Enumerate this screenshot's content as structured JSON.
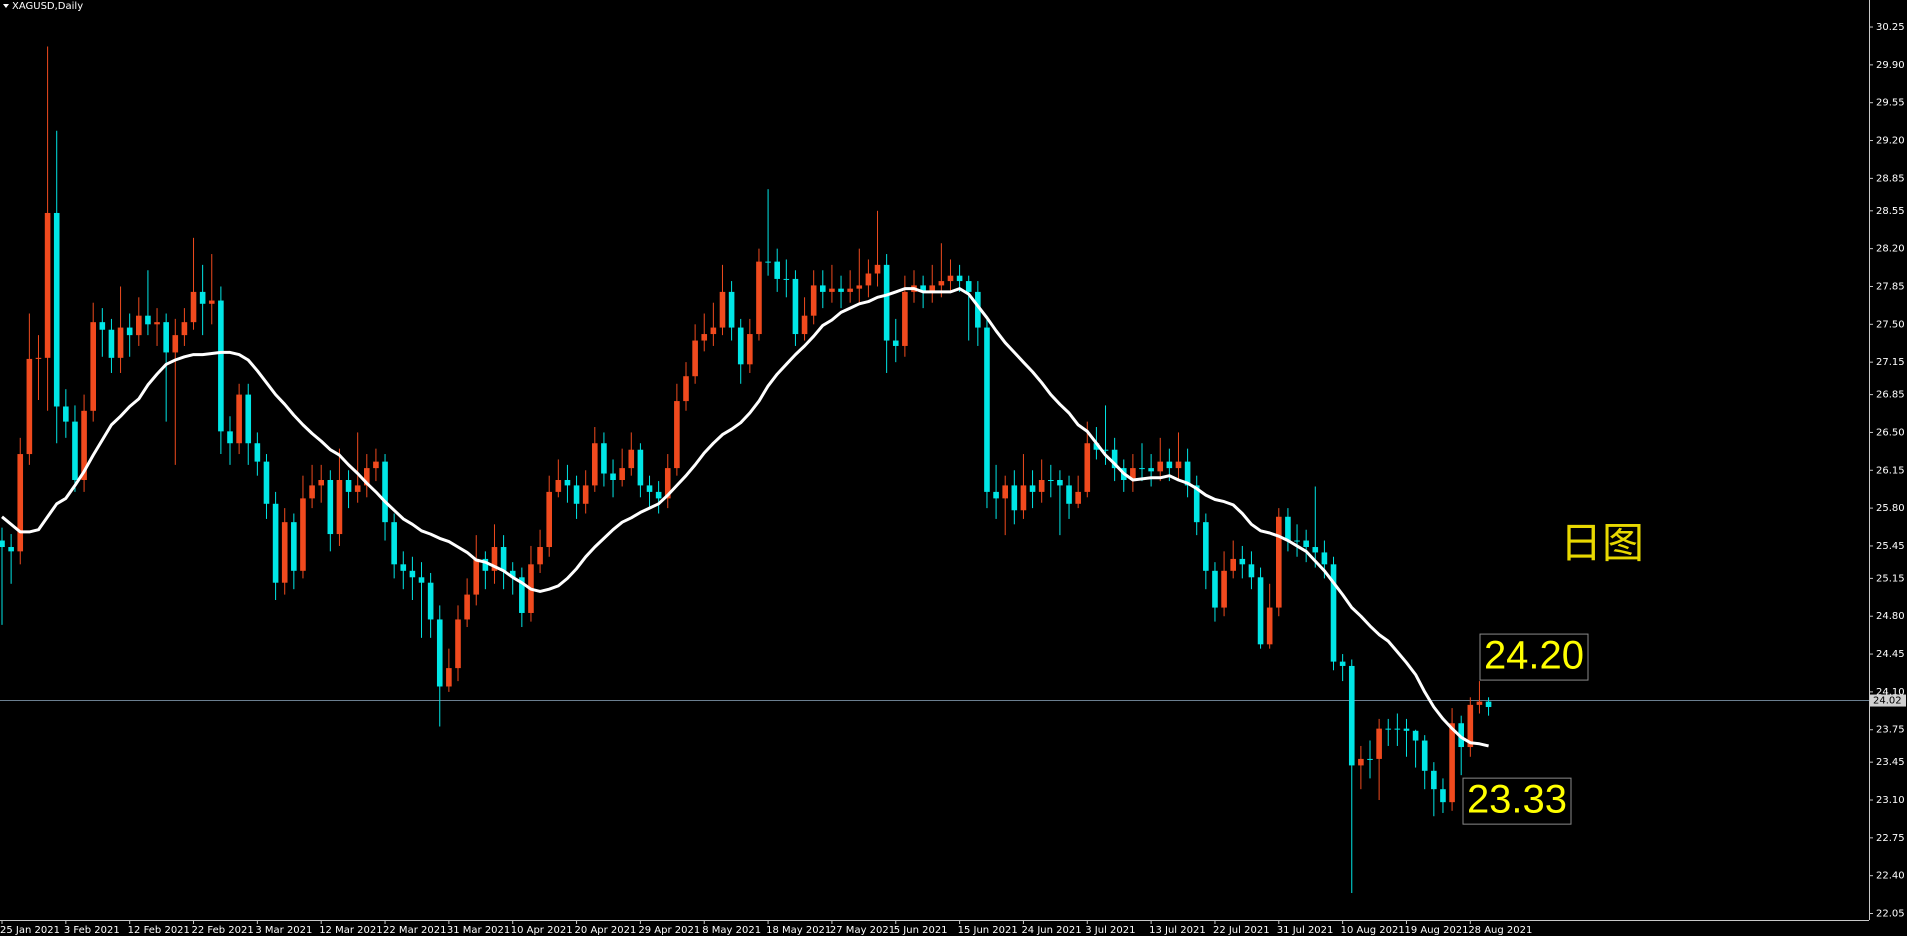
{
  "chart_data": {
    "type": "candlestick",
    "title": "XAGUSD,Daily",
    "note": "日图",
    "categories": [
      "25 Jan 2021",
      null,
      null,
      null,
      null,
      null,
      null,
      "3 Feb 2021",
      null,
      null,
      null,
      null,
      null,
      null,
      "12 Feb 2021",
      null,
      null,
      null,
      null,
      null,
      null,
      "22 Feb 2021",
      null,
      null,
      null,
      null,
      null,
      null,
      "3 Mar 2021",
      null,
      null,
      null,
      null,
      null,
      null,
      "12 Mar 2021",
      null,
      null,
      null,
      null,
      null,
      null,
      "22 Mar 2021",
      null,
      null,
      null,
      null,
      null,
      null,
      "31 Mar 2021",
      null,
      null,
      null,
      null,
      null,
      null,
      "10 Apr 2021",
      null,
      null,
      null,
      null,
      null,
      null,
      "20 Apr 2021",
      null,
      null,
      null,
      null,
      null,
      null,
      "29 Apr 2021",
      null,
      null,
      null,
      null,
      null,
      null,
      "8 May 2021",
      null,
      null,
      null,
      null,
      null,
      null,
      "18 May 2021",
      null,
      null,
      null,
      null,
      null,
      null,
      "27 May 2021",
      null,
      null,
      null,
      null,
      null,
      null,
      "5 Jun 2021",
      null,
      null,
      null,
      null,
      null,
      null,
      "15 Jun 2021",
      null,
      null,
      null,
      null,
      null,
      null,
      "24 Jun 2021",
      null,
      null,
      null,
      null,
      null,
      null,
      "3 Jul 2021",
      null,
      null,
      null,
      null,
      null,
      null,
      "13 Jul 2021",
      null,
      null,
      null,
      null,
      null,
      null,
      "22 Jul 2021",
      null,
      null,
      null,
      null,
      null,
      null,
      "31 Jul 2021",
      null,
      null,
      null,
      null,
      null,
      null,
      "10 Aug 2021",
      null,
      null,
      null,
      null,
      null,
      null,
      "19 Aug 2021",
      null,
      null,
      null,
      null,
      null,
      null,
      "28 Aug 2021",
      null,
      null
    ],
    "open": [
      25.5,
      25.44,
      25.4,
      26.3,
      27.18,
      27.19,
      28.53,
      26.74,
      26.6,
      26.06,
      26.7,
      27.52,
      27.45,
      27.19,
      27.47,
      27.4,
      27.58,
      27.5,
      27.52,
      27.24,
      27.4,
      27.52,
      27.8,
      27.69,
      27.72,
      26.51,
      26.4,
      26.85,
      26.4,
      26.23,
      25.84,
      25.11,
      25.67,
      25.22,
      25.89,
      26.01,
      26.06,
      25.56,
      26.06,
      25.95,
      26.01,
      26.17,
      26.23,
      25.67,
      25.28,
      25.22,
      25.16,
      25.11,
      24.77,
      24.15,
      24.32,
      24.77,
      25.0,
      25.33,
      25.22,
      25.44,
      25.22,
      25.16,
      24.83,
      25.28,
      25.44,
      25.95,
      26.06,
      26.01,
      25.84,
      26.01,
      26.4,
      26.12,
      26.06,
      26.17,
      26.34,
      26.01,
      25.95,
      25.89,
      26.17,
      26.79,
      27.02,
      27.35,
      27.41,
      27.47,
      27.8,
      27.47,
      27.13,
      27.41,
      28.08,
      28.08,
      27.92,
      27.92,
      27.41,
      27.58,
      27.86,
      27.8,
      27.83,
      27.8,
      27.83,
      27.86,
      27.97,
      28.05,
      27.35,
      27.3,
      27.8,
      27.86,
      27.8,
      27.86,
      27.9,
      27.95,
      27.9,
      27.8,
      27.47,
      25.95,
      25.89,
      26.01,
      25.78,
      26.01,
      25.95,
      26.06,
      26.06,
      26.01,
      25.84,
      25.95,
      26.4,
      26.34,
      26.34,
      26.17,
      26.06,
      26.17,
      26.17,
      26.14,
      26.23,
      26.17,
      26.23,
      26.01,
      25.67,
      25.22,
      24.88,
      25.22,
      25.33,
      25.28,
      25.16,
      24.54,
      24.88,
      25.72,
      25.5,
      25.5,
      25.44,
      25.39,
      25.28,
      24.38,
      24.34,
      23.42,
      23.48,
      23.48,
      23.76,
      23.76,
      23.76,
      23.74,
      23.65,
      23.37,
      23.2,
      23.08,
      23.81,
      23.59,
      23.98,
      24.01
    ],
    "high": [
      25.62,
      25.56,
      26.45,
      27.6,
      27.4,
      30.07,
      29.29,
      26.9,
      26.75,
      26.85,
      27.7,
      27.65,
      27.55,
      27.85,
      27.6,
      27.75,
      28.0,
      27.65,
      27.6,
      27.55,
      27.65,
      28.3,
      28.05,
      28.15,
      27.85,
      26.65,
      26.95,
      26.95,
      26.5,
      26.3,
      25.95,
      25.8,
      25.75,
      26.1,
      26.2,
      26.2,
      26.15,
      26.35,
      26.15,
      26.5,
      26.3,
      26.35,
      26.3,
      25.75,
      25.4,
      25.35,
      25.3,
      25.2,
      24.9,
      24.5,
      24.9,
      25.15,
      25.55,
      25.4,
      25.65,
      25.55,
      25.3,
      25.25,
      25.45,
      25.6,
      26.1,
      26.25,
      26.2,
      26.1,
      26.15,
      26.55,
      26.5,
      26.25,
      26.35,
      26.5,
      26.4,
      26.1,
      26.05,
      26.3,
      26.95,
      27.15,
      27.5,
      27.6,
      27.7,
      28.05,
      27.9,
      27.55,
      27.55,
      28.2,
      28.75,
      28.2,
      28.1,
      28.0,
      27.75,
      28.0,
      28.0,
      28.05,
      27.95,
      28.0,
      28.2,
      28.1,
      28.55,
      28.15,
      27.55,
      27.95,
      28.0,
      27.95,
      28.05,
      28.25,
      28.1,
      28.05,
      27.95,
      27.9,
      27.55,
      26.2,
      26.1,
      26.15,
      26.3,
      26.15,
      26.25,
      26.2,
      26.15,
      26.1,
      26.1,
      26.6,
      26.55,
      26.75,
      26.45,
      26.25,
      26.3,
      26.4,
      26.3,
      26.45,
      26.35,
      26.5,
      26.35,
      26.1,
      25.75,
      25.3,
      25.4,
      25.5,
      25.45,
      25.4,
      25.25,
      25.1,
      25.8,
      25.8,
      25.65,
      25.6,
      26.0,
      25.5,
      25.35,
      24.45,
      24.4,
      23.6,
      23.65,
      23.85,
      23.85,
      23.9,
      23.85,
      23.75,
      23.7,
      23.45,
      23.3,
      23.95,
      23.88,
      24.05,
      24.2,
      24.05
    ],
    "low": [
      24.72,
      25.1,
      25.28,
      26.2,
      26.8,
      26.7,
      26.4,
      26.45,
      25.95,
      25.95,
      26.6,
      27.2,
      27.05,
      27.05,
      27.2,
      27.3,
      27.4,
      27.3,
      26.6,
      26.2,
      27.3,
      27.45,
      27.4,
      27.5,
      26.3,
      26.2,
      26.3,
      26.2,
      26.1,
      25.7,
      24.95,
      25.0,
      25.05,
      25.15,
      25.8,
      25.85,
      25.4,
      25.45,
      25.8,
      25.85,
      25.9,
      26.05,
      25.5,
      25.15,
      25.05,
      24.95,
      24.6,
      24.6,
      23.78,
      24.1,
      24.2,
      24.7,
      24.9,
      25.05,
      25.1,
      25.05,
      25.0,
      24.7,
      24.75,
      25.2,
      25.35,
      25.9,
      25.85,
      25.7,
      25.75,
      25.95,
      26.0,
      25.9,
      26.0,
      26.1,
      25.9,
      25.8,
      25.75,
      25.8,
      26.1,
      26.7,
      26.95,
      27.25,
      27.3,
      27.4,
      27.35,
      26.95,
      27.05,
      27.35,
      27.95,
      27.8,
      27.75,
      27.3,
      27.35,
      27.5,
      27.65,
      27.7,
      27.65,
      27.7,
      27.7,
      27.75,
      27.85,
      27.05,
      27.15,
      27.2,
      27.7,
      27.65,
      27.7,
      27.75,
      27.8,
      27.8,
      27.35,
      27.3,
      25.8,
      25.7,
      25.55,
      25.65,
      25.7,
      25.8,
      25.85,
      25.9,
      25.55,
      25.7,
      25.8,
      25.9,
      26.25,
      26.2,
      26.05,
      25.95,
      25.95,
      26.05,
      26.0,
      26.05,
      26.05,
      26.05,
      25.9,
      25.55,
      25.05,
      24.75,
      24.8,
      25.15,
      25.15,
      25.05,
      24.5,
      24.5,
      24.8,
      25.4,
      25.35,
      25.3,
      25.25,
      25.15,
      24.3,
      24.2,
      22.24,
      23.2,
      23.3,
      23.1,
      23.6,
      23.6,
      23.5,
      23.4,
      23.2,
      22.95,
      22.98,
      23.0,
      23.33,
      23.5,
      23.9,
      23.88
    ],
    "close": [
      25.44,
      25.4,
      26.3,
      27.18,
      27.19,
      28.53,
      26.74,
      26.6,
      26.06,
      26.7,
      27.52,
      27.45,
      27.19,
      27.47,
      27.4,
      27.58,
      27.5,
      27.52,
      27.24,
      27.4,
      27.52,
      27.8,
      27.69,
      27.72,
      26.51,
      26.4,
      26.85,
      26.4,
      26.23,
      25.84,
      25.11,
      25.67,
      25.22,
      25.89,
      26.01,
      26.06,
      25.56,
      26.06,
      25.95,
      26.01,
      26.17,
      26.23,
      25.67,
      25.28,
      25.22,
      25.16,
      25.11,
      24.77,
      24.15,
      24.32,
      24.77,
      25.0,
      25.33,
      25.22,
      25.44,
      25.22,
      25.16,
      24.83,
      25.28,
      25.44,
      25.95,
      26.06,
      26.01,
      25.84,
      26.01,
      26.4,
      26.12,
      26.06,
      26.17,
      26.34,
      26.01,
      25.95,
      25.89,
      26.17,
      26.79,
      27.02,
      27.35,
      27.41,
      27.47,
      27.8,
      27.47,
      27.13,
      27.41,
      28.08,
      28.08,
      27.92,
      27.92,
      27.41,
      27.58,
      27.86,
      27.8,
      27.83,
      27.8,
      27.83,
      27.86,
      27.97,
      28.05,
      27.35,
      27.3,
      27.8,
      27.86,
      27.8,
      27.86,
      27.9,
      27.95,
      27.9,
      27.8,
      27.47,
      25.95,
      25.89,
      26.01,
      25.78,
      26.01,
      25.95,
      26.06,
      26.06,
      26.01,
      25.84,
      25.95,
      26.4,
      26.34,
      26.34,
      26.17,
      26.06,
      26.17,
      26.17,
      26.14,
      26.23,
      26.17,
      26.23,
      26.01,
      25.67,
      25.22,
      24.88,
      25.22,
      25.33,
      25.28,
      25.16,
      24.54,
      24.88,
      25.72,
      25.5,
      25.5,
      25.44,
      25.39,
      25.28,
      24.38,
      24.34,
      23.42,
      23.48,
      23.48,
      23.76,
      23.76,
      23.76,
      23.74,
      23.65,
      23.37,
      23.2,
      23.08,
      23.81,
      23.59,
      23.98,
      24.01,
      23.96
    ],
    "up_color": "#f04a1e",
    "down_color": "#00e6e6",
    "ma": {
      "color": "#ffffff",
      "values": [
        25.72,
        25.65,
        25.58,
        25.58,
        25.6,
        25.72,
        25.84,
        25.89,
        26.01,
        26.14,
        26.29,
        26.43,
        26.57,
        26.65,
        26.74,
        26.81,
        26.94,
        27.04,
        27.13,
        27.17,
        27.2,
        27.22,
        27.22,
        27.23,
        27.24,
        27.24,
        27.22,
        27.17,
        27.07,
        26.96,
        26.85,
        26.76,
        26.66,
        26.57,
        26.49,
        26.42,
        26.34,
        26.29,
        26.2,
        26.12,
        26.03,
        25.95,
        25.86,
        25.78,
        25.7,
        25.65,
        25.59,
        25.56,
        25.52,
        25.49,
        25.44,
        25.39,
        25.32,
        25.3,
        25.26,
        25.22,
        25.16,
        25.11,
        25.05,
        25.03,
        25.05,
        25.08,
        25.15,
        25.24,
        25.35,
        25.44,
        25.52,
        25.6,
        25.67,
        25.71,
        25.76,
        25.8,
        25.84,
        25.92,
        26.01,
        26.1,
        26.2,
        26.31,
        26.4,
        26.48,
        26.53,
        26.59,
        26.68,
        26.79,
        26.93,
        27.04,
        27.13,
        27.22,
        27.3,
        27.39,
        27.49,
        27.54,
        27.61,
        27.65,
        27.69,
        27.71,
        27.75,
        27.77,
        27.8,
        27.83,
        27.83,
        27.8,
        27.8,
        27.8,
        27.8,
        27.83,
        27.78,
        27.67,
        27.56,
        27.44,
        27.33,
        27.24,
        27.15,
        27.06,
        26.96,
        26.85,
        26.76,
        26.68,
        26.57,
        26.51,
        26.4,
        26.29,
        26.21,
        26.12,
        26.06,
        26.07,
        26.08,
        26.08,
        26.1,
        26.06,
        26.03,
        25.98,
        25.92,
        25.88,
        25.86,
        25.83,
        25.75,
        25.65,
        25.59,
        25.57,
        25.54,
        25.5,
        25.45,
        25.4,
        25.31,
        25.22,
        25.11,
        25.0,
        24.88,
        24.8,
        24.71,
        24.63,
        24.57,
        24.47,
        24.37,
        24.26,
        24.1,
        23.96,
        23.85,
        23.76,
        23.68,
        23.63,
        23.62,
        23.6
      ]
    },
    "last_price": 24.02,
    "annotations": [
      {
        "value": 24.2,
        "label": "24.20"
      },
      23.33
    ],
    "ylim": [
      21.99,
      30.5
    ],
    "yticks": [
      22.05,
      {
        "value": 22.4,
        "label": "22.40"
      },
      22.75,
      {
        "value": 23.1,
        "label": "23.10"
      },
      23.45,
      23.75,
      {
        "value": 24.1,
        "label": "24.10"
      },
      24.45,
      {
        "value": 24.8,
        "label": "24.80"
      },
      25.15,
      25.45,
      {
        "value": 25.8,
        "label": "25.80"
      },
      26.15,
      {
        "value": 26.5,
        "label": "26.50"
      },
      26.85,
      27.15,
      {
        "value": 27.5,
        "label": "27.50"
      },
      27.85,
      {
        "value": 28.2,
        "label": "28.20"
      },
      28.55,
      28.85,
      {
        "value": 29.2,
        "label": "29.20"
      },
      29.55,
      {
        "value": 29.9,
        "label": "29.90"
      },
      30.25
    ],
    "grid": false
  }
}
